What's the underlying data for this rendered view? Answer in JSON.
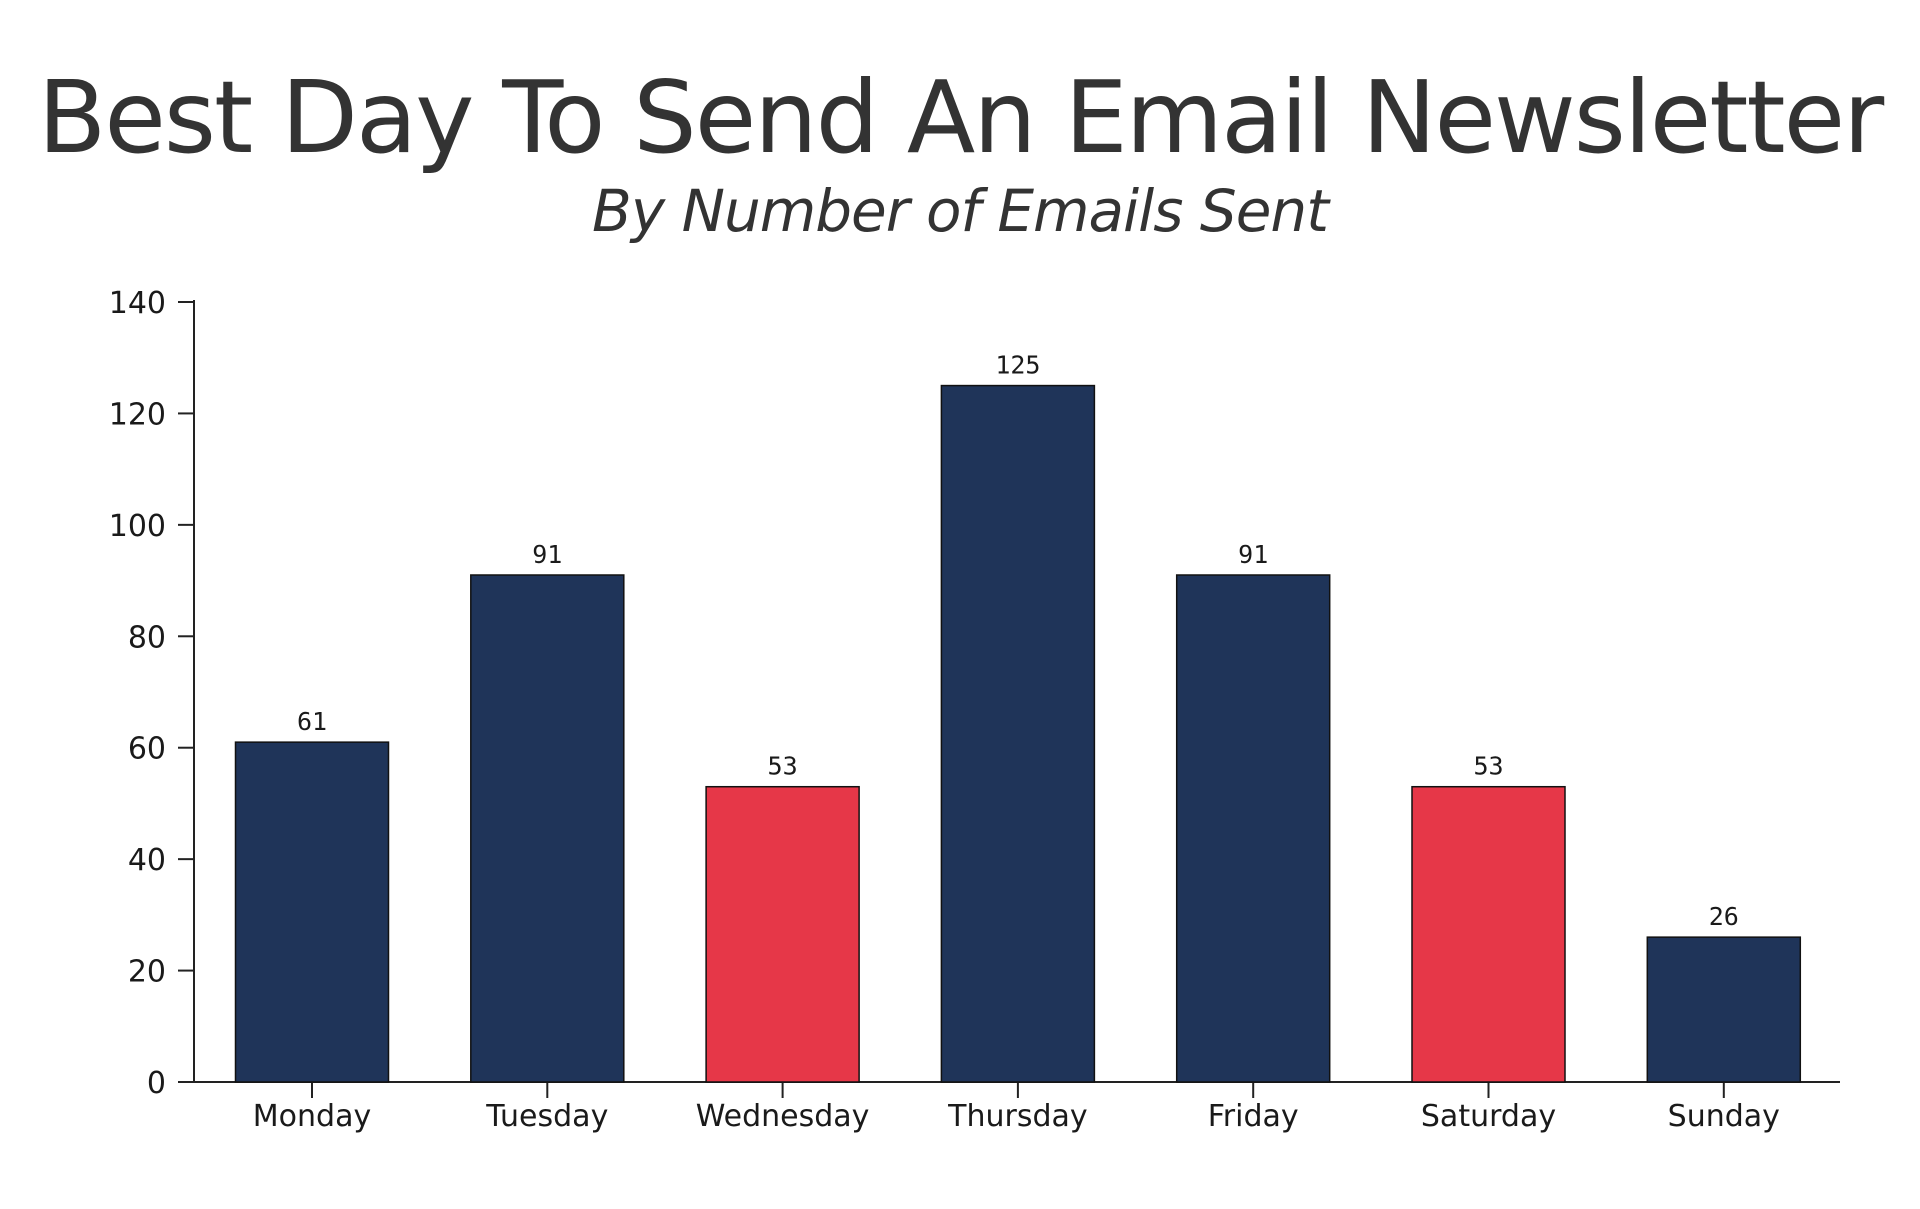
{
  "chart_data": {
    "type": "bar",
    "title": "Best Day To Send An Email Newsletter",
    "subtitle": "By Number of Emails Sent",
    "xlabel": "",
    "ylabel": "",
    "categories": [
      "Monday",
      "Tuesday",
      "Wednesday",
      "Thursday",
      "Friday",
      "Saturday",
      "Sunday"
    ],
    "values": [
      61,
      91,
      53,
      125,
      91,
      53,
      26
    ],
    "data_labels": [
      "61",
      "91",
      "53",
      "125",
      "91",
      "53",
      "26"
    ],
    "bar_colors": [
      "#1f3459",
      "#1f3459",
      "#e63748",
      "#1f3459",
      "#1f3459",
      "#e63748",
      "#1f3459"
    ],
    "ylim": [
      0,
      140
    ],
    "yticks": [
      0,
      20,
      40,
      60,
      80,
      100,
      120,
      140
    ],
    "ytick_labels": [
      "0",
      "20",
      "40",
      "60",
      "80",
      "100",
      "120",
      "140"
    ],
    "grid": false,
    "legend": "none"
  },
  "colors": {
    "primary_bar": "#1f3459",
    "highlight_bar": "#e63748",
    "text": "#333333",
    "axis": "#222222"
  }
}
